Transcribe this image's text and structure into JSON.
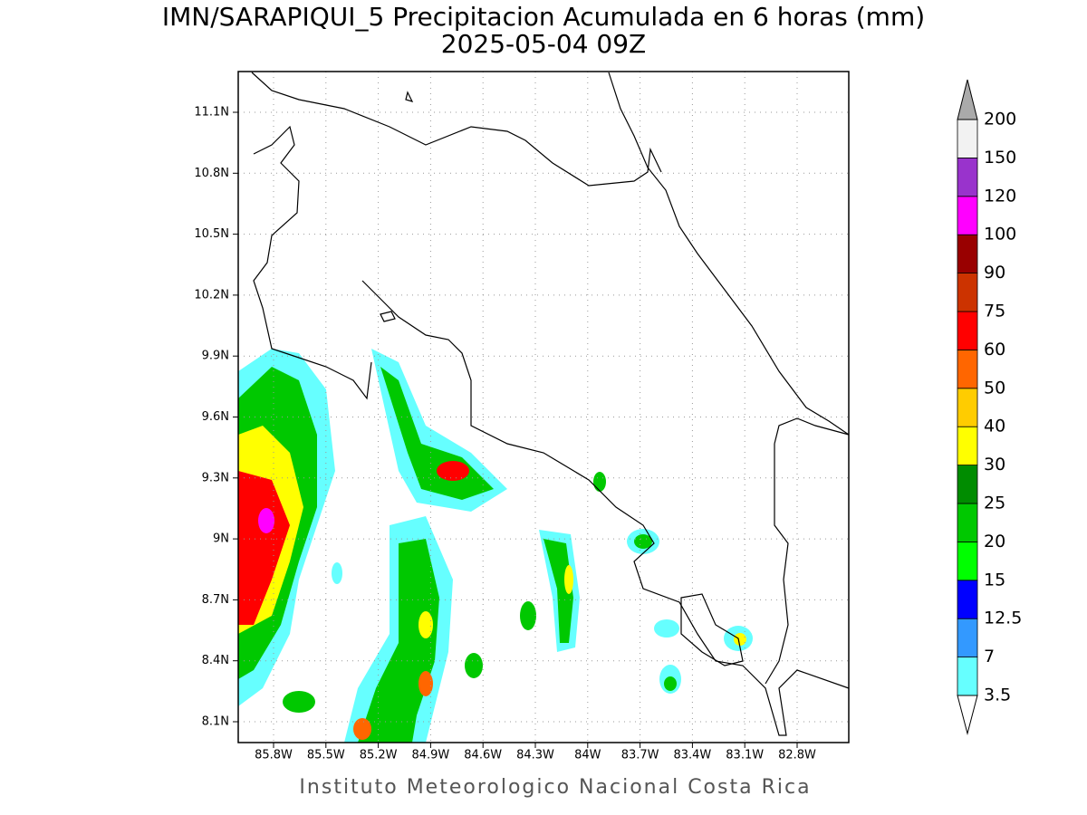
{
  "title": "IMN/SARAPIQUI_5 Precipitacion Acumulada en 6 horas (mm)",
  "subtitle": "2025-05-04 09Z",
  "map": {
    "lat_ticks": [
      {
        "value": 11.1,
        "label": "11.1N"
      },
      {
        "value": 10.8,
        "label": "10.8N"
      },
      {
        "value": 10.5,
        "label": "10.5N"
      },
      {
        "value": 10.2,
        "label": "10.2N"
      },
      {
        "value": 9.9,
        "label": "9.9N"
      },
      {
        "value": 9.6,
        "label": "9.6N"
      },
      {
        "value": 9.3,
        "label": "9.3N"
      },
      {
        "value": 9,
        "label": "9N"
      },
      {
        "value": 8.7,
        "label": "8.7N"
      },
      {
        "value": 8.4,
        "label": "8.4N"
      },
      {
        "value": 8.1,
        "label": "8.1N"
      }
    ],
    "lon_ticks": [
      {
        "value": -85.8,
        "label": "85.8W"
      },
      {
        "value": -85.5,
        "label": "85.5W"
      },
      {
        "value": -85.2,
        "label": "85.2W"
      },
      {
        "value": -84.9,
        "label": "84.9W"
      },
      {
        "value": -84.6,
        "label": "84.6W"
      },
      {
        "value": -84.3,
        "label": "84.3W"
      },
      {
        "value": -84,
        "label": "84W"
      },
      {
        "value": -83.7,
        "label": "83.7W"
      },
      {
        "value": -83.4,
        "label": "83.4W"
      },
      {
        "value": -83.1,
        "label": "83.1W"
      },
      {
        "value": -82.8,
        "label": "82.8W"
      }
    ]
  },
  "colorbar": {
    "levels": [
      3.5,
      7,
      12.5,
      15,
      20,
      25,
      30,
      40,
      50,
      60,
      75,
      90,
      100,
      120,
      150,
      200
    ],
    "colors": [
      "#66ffff",
      "#3399ff",
      "#0000ff",
      "#00ff00",
      "#00c800",
      "#008c00",
      "#ffff00",
      "#ffcc00",
      "#ff6600",
      "#ff0000",
      "#cc3300",
      "#990000",
      "#ff00ff",
      "#9933cc",
      "#f2f2f2"
    ],
    "over_color": "#aaaaaa",
    "under_color": "#ffffff"
  },
  "footer": "Instituto Meteorologico Nacional Costa Rica"
}
